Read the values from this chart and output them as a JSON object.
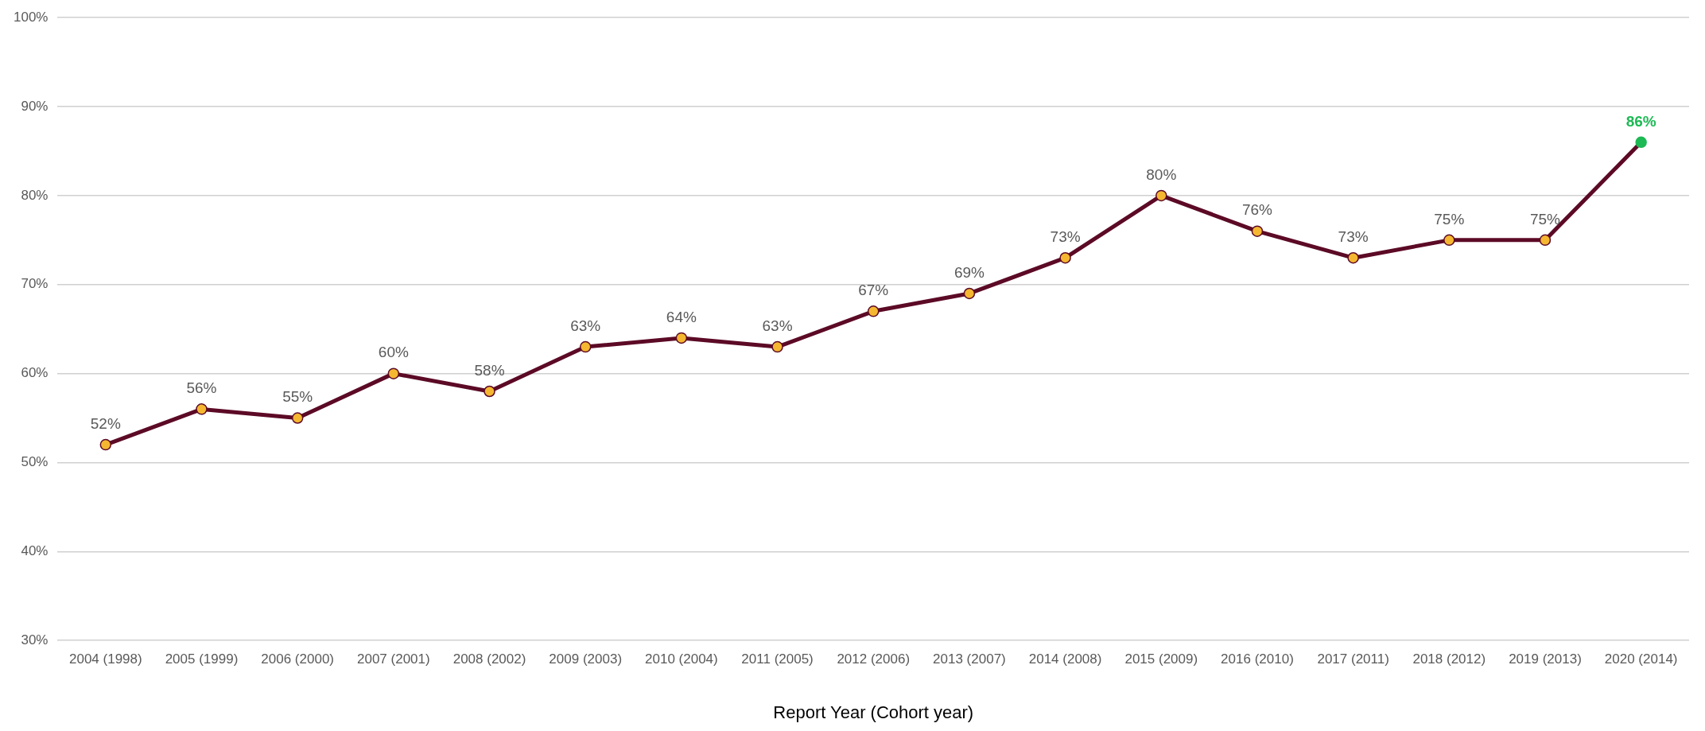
{
  "chart_data": {
    "type": "line",
    "xlabel": "Report Year (Cohort year)",
    "categories": [
      "2004 (1998)",
      "2005 (1999)",
      "2006 (2000)",
      "2007 (2001)",
      "2008 (2002)",
      "2009 (2003)",
      "2010 (2004)",
      "2011 (2005)",
      "2012 (2006)",
      "2013 (2007)",
      "2014 (2008)",
      "2015 (2009)",
      "2016 (2010)",
      "2017 (2011)",
      "2018 (2012)",
      "2019 (2013)",
      "2020 (2014)"
    ],
    "series": [
      {
        "color": "#5c0a26",
        "colors": [
          "#f5b731",
          "#f5b731",
          "#f5b731",
          "#f5b731",
          "#f5b731",
          "#f5b731",
          "#f5b731",
          "#f5b731",
          "#f5b731",
          "#f5b731",
          "#f5b731",
          "#f5b731",
          "#f5b731",
          "#f5b731",
          "#f5b731",
          "#f5b731",
          "#1db954"
        ],
        "values": [
          52,
          56,
          55,
          60,
          58,
          63,
          64,
          63,
          67,
          69,
          73,
          80,
          76,
          73,
          75,
          75,
          86
        ],
        "value_labels": [
          "52%",
          "56%",
          "55%",
          "60%",
          "58%",
          "63%",
          "64%",
          "63%",
          "67%",
          "69%",
          "73%",
          "80%",
          "76%",
          "73%",
          "75%",
          "75%",
          "86%"
        ]
      }
    ],
    "ylim": [
      30,
      100
    ],
    "yticks": [
      {
        "value": 30,
        "label": "30%"
      },
      {
        "value": 40,
        "label": "40%"
      },
      {
        "value": 50,
        "label": "50%"
      },
      {
        "value": 60,
        "label": "60%"
      },
      {
        "value": 70,
        "label": "70%"
      },
      {
        "value": 80,
        "label": "80%"
      },
      {
        "value": 90,
        "label": "90%"
      },
      {
        "value": 100,
        "label": "100%"
      }
    ],
    "grid": "y",
    "legend": false,
    "marker": "circle",
    "line_style": "solid"
  }
}
